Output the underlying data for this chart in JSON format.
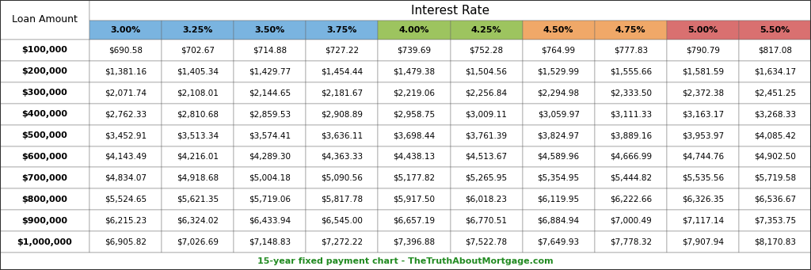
{
  "title": "Interest Rate",
  "col_header": [
    "3.00%",
    "3.25%",
    "3.50%",
    "3.75%",
    "4.00%",
    "4.25%",
    "4.50%",
    "4.75%",
    "5.00%",
    "5.50%"
  ],
  "col_header_colors": [
    "#7ab4e0",
    "#7ab4e0",
    "#7ab4e0",
    "#7ab4e0",
    "#9dc45f",
    "#9dc45f",
    "#f0a868",
    "#f0a868",
    "#d97070",
    "#d97070"
  ],
  "row_header": [
    "$100,000",
    "$200,000",
    "$300,000",
    "$400,000",
    "$500,000",
    "$600,000",
    "$700,000",
    "$800,000",
    "$900,000",
    "$1,000,000"
  ],
  "row_header_label": "Loan Amount",
  "data": [
    [
      "$690.58",
      "$702.67",
      "$714.88",
      "$727.22",
      "$739.69",
      "$752.28",
      "$764.99",
      "$777.83",
      "$790.79",
      "$817.08"
    ],
    [
      "$1,381.16",
      "$1,405.34",
      "$1,429.77",
      "$1,454.44",
      "$1,479.38",
      "$1,504.56",
      "$1,529.99",
      "$1,555.66",
      "$1,581.59",
      "$1,634.17"
    ],
    [
      "$2,071.74",
      "$2,108.01",
      "$2,144.65",
      "$2,181.67",
      "$2,219.06",
      "$2,256.84",
      "$2,294.98",
      "$2,333.50",
      "$2,372.38",
      "$2,451.25"
    ],
    [
      "$2,762.33",
      "$2,810.68",
      "$2,859.53",
      "$2,908.89",
      "$2,958.75",
      "$3,009.11",
      "$3,059.97",
      "$3,111.33",
      "$3,163.17",
      "$3,268.33"
    ],
    [
      "$3,452.91",
      "$3,513.34",
      "$3,574.41",
      "$3,636.11",
      "$3,698.44",
      "$3,761.39",
      "$3,824.97",
      "$3,889.16",
      "$3,953.97",
      "$4,085.42"
    ],
    [
      "$4,143.49",
      "$4,216.01",
      "$4,289.30",
      "$4,363.33",
      "$4,438.13",
      "$4,513.67",
      "$4,589.96",
      "$4,666.99",
      "$4,744.76",
      "$4,902.50"
    ],
    [
      "$4,834.07",
      "$4,918.68",
      "$5,004.18",
      "$5,090.56",
      "$5,177.82",
      "$5,265.95",
      "$5,354.95",
      "$5,444.82",
      "$5,535.56",
      "$5,719.58"
    ],
    [
      "$5,524.65",
      "$5,621.35",
      "$5,719.06",
      "$5,817.78",
      "$5,917.50",
      "$6,018.23",
      "$6,119.95",
      "$6,222.66",
      "$6,326.35",
      "$6,536.67"
    ],
    [
      "$6,215.23",
      "$6,324.02",
      "$6,433.94",
      "$6,545.00",
      "$6,657.19",
      "$6,770.51",
      "$6,884.94",
      "$7,000.49",
      "$7,117.14",
      "$7,353.75"
    ],
    [
      "$6,905.82",
      "$7,026.69",
      "$7,148.83",
      "$7,272.22",
      "$7,396.88",
      "$7,522.78",
      "$7,649.93",
      "$7,778.32",
      "$7,907.94",
      "$8,170.83"
    ]
  ],
  "footer_text": "15-year fixed payment chart - TheTruthAboutMortgage.com",
  "footer_color": "#228B22",
  "bg_color": "#ffffff",
  "figw": 10.24,
  "figh": 3.41,
  "dpi": 100
}
